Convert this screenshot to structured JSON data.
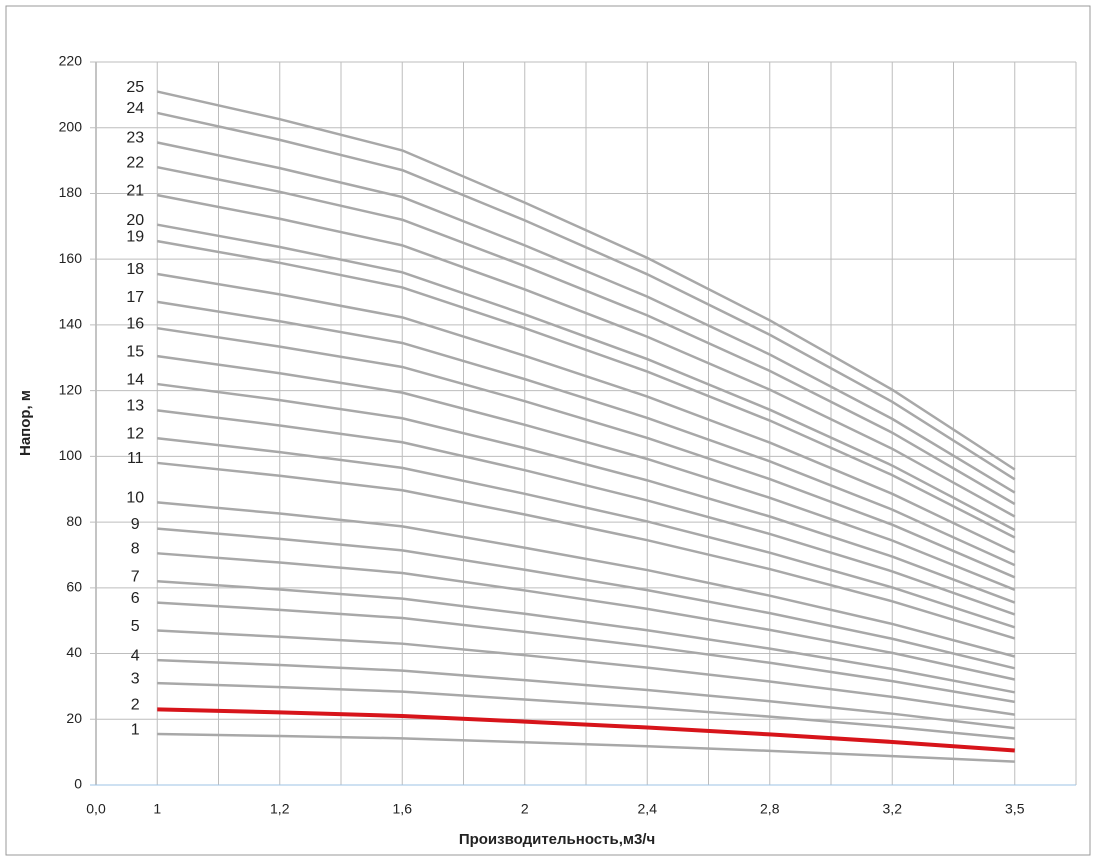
{
  "chart_data": {
    "type": "line",
    "x_label": "Производительность,м3/ч",
    "y_label": "Напор, м",
    "categories": [
      "0,0",
      "1",
      "1,2",
      "1,6",
      "2",
      "2,4",
      "2,8",
      "3,2",
      "3,5"
    ],
    "ylim": [
      0,
      220
    ],
    "yticks": [
      0,
      20,
      40,
      60,
      80,
      100,
      120,
      140,
      160,
      180,
      200,
      220
    ],
    "grid": true,
    "series": [
      {
        "name": "1",
        "color": "#a8a8a8",
        "values": [
          null,
          15.5,
          14.9,
          14.2,
          13,
          11.8,
          10.4,
          8.8,
          7.1
        ]
      },
      {
        "name": "2",
        "color": "#d7141a",
        "values": [
          null,
          23,
          22.1,
          21,
          19.3,
          17.5,
          15.4,
          13.1,
          10.5
        ]
      },
      {
        "name": "3",
        "color": "#a8a8a8",
        "values": [
          null,
          31,
          29.8,
          28.4,
          26,
          23.6,
          20.8,
          17.7,
          14.1
        ]
      },
      {
        "name": "4",
        "color": "#a8a8a8",
        "values": [
          null,
          38,
          36.5,
          34.8,
          31.9,
          28.9,
          25.5,
          21.7,
          17.3
        ]
      },
      {
        "name": "5",
        "color": "#a8a8a8",
        "values": [
          null,
          47,
          45.1,
          43,
          39.5,
          35.7,
          31.5,
          26.8,
          21.4
        ]
      },
      {
        "name": "6",
        "color": "#a8a8a8",
        "values": [
          null,
          55.5,
          53.3,
          50.8,
          46.6,
          42.2,
          37.2,
          31.6,
          25.3
        ]
      },
      {
        "name": "7",
        "color": "#a8a8a8",
        "values": [
          null,
          62,
          59.5,
          56.7,
          52.1,
          47.1,
          41.5,
          35.3,
          28.2
        ]
      },
      {
        "name": "8",
        "color": "#a8a8a8",
        "values": [
          null,
          70.5,
          67.7,
          64.5,
          59.2,
          53.6,
          47.2,
          40.2,
          32.1
        ]
      },
      {
        "name": "9",
        "color": "#a8a8a8",
        "values": [
          null,
          78,
          74.9,
          71.4,
          65.5,
          59.3,
          52.3,
          44.5,
          35.5
        ]
      },
      {
        "name": "10",
        "color": "#a8a8a8",
        "values": [
          null,
          86,
          82.6,
          78.7,
          72.2,
          65.4,
          57.6,
          49,
          39.1
        ]
      },
      {
        "name": "11",
        "color": "#a8a8a8",
        "values": [
          null,
          98,
          94.1,
          89.7,
          82.3,
          74.5,
          65.7,
          55.9,
          44.6
        ]
      },
      {
        "name": "12",
        "color": "#a8a8a8",
        "values": [
          null,
          105.5,
          101.3,
          96.5,
          88.6,
          80.2,
          70.7,
          60.1,
          48
        ]
      },
      {
        "name": "13",
        "color": "#a8a8a8",
        "values": [
          null,
          114,
          109.4,
          104.3,
          95.8,
          86.6,
          76.4,
          65,
          51.9
        ]
      },
      {
        "name": "14",
        "color": "#a8a8a8",
        "values": [
          null,
          122,
          117.1,
          111.6,
          102.5,
          92.7,
          81.7,
          69.5,
          55.5
        ]
      },
      {
        "name": "15",
        "color": "#a8a8a8",
        "values": [
          null,
          130.5,
          125.3,
          119.4,
          109.6,
          99.2,
          87.4,
          74.4,
          59.4
        ]
      },
      {
        "name": "16",
        "color": "#a8a8a8",
        "values": [
          null,
          139,
          133.4,
          127.2,
          116.8,
          105.6,
          93.1,
          79.2,
          63.2
        ]
      },
      {
        "name": "17",
        "color": "#a8a8a8",
        "values": [
          null,
          147,
          141.1,
          134.5,
          123.5,
          111.7,
          98.5,
          83.8,
          66.9
        ]
      },
      {
        "name": "18",
        "color": "#a8a8a8",
        "values": [
          null,
          155.5,
          149.3,
          142.3,
          130.6,
          118.2,
          104.2,
          88.6,
          70.8
        ]
      },
      {
        "name": "19",
        "color": "#a8a8a8",
        "values": [
          null,
          165.5,
          158.9,
          151.4,
          139,
          125.8,
          110.9,
          94.3,
          75.3
        ]
      },
      {
        "name": "20",
        "color": "#a8a8a8",
        "values": [
          null,
          170.5,
          163.7,
          156,
          143.2,
          129.6,
          114.2,
          97.2,
          77.6
        ]
      },
      {
        "name": "21",
        "color": "#a8a8a8",
        "values": [
          null,
          179.5,
          172.3,
          164.2,
          150.8,
          136.4,
          120.3,
          102.3,
          81.7
        ]
      },
      {
        "name": "22",
        "color": "#a8a8a8",
        "values": [
          null,
          188,
          180.5,
          172,
          157.9,
          142.9,
          126,
          107.2,
          85.5
        ]
      },
      {
        "name": "23",
        "color": "#a8a8a8",
        "values": [
          null,
          195.5,
          187.7,
          178.9,
          164.2,
          148.6,
          131,
          111.4,
          89
        ]
      },
      {
        "name": "24",
        "color": "#a8a8a8",
        "values": [
          null,
          204.5,
          196.3,
          187.1,
          171.8,
          155.4,
          137,
          116.6,
          93
        ]
      },
      {
        "name": "25",
        "color": "#a8a8a8",
        "values": [
          null,
          211,
          202.6,
          193.1,
          177.2,
          160.4,
          141.4,
          120.3,
          96
        ]
      }
    ]
  }
}
